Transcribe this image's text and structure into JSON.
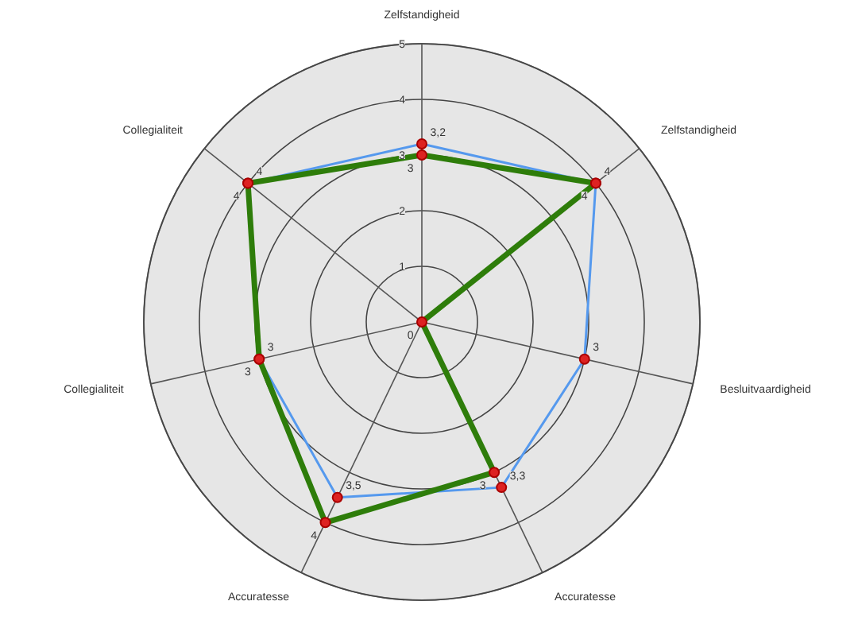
{
  "chart_data": {
    "type": "radar",
    "categories": [
      "Zelfstandigheid",
      "Zelfstandigheid",
      "Besluitvaardigheid",
      "Accuratesse",
      "Accuratesse",
      "Collegialiteit",
      "Collegialiteit"
    ],
    "series": [
      {
        "color": "#5599ee",
        "values": [
          3.2,
          4,
          3,
          3.3,
          3.5,
          3,
          4
        ],
        "value_labels": [
          "3,2",
          "4",
          "3",
          "3,3",
          "3,5",
          "3",
          "4"
        ]
      },
      {
        "color": "#2e7d0a",
        "values": [
          3,
          4,
          0,
          3,
          4,
          3,
          4
        ],
        "value_labels": [
          "3",
          "4",
          "0",
          "3",
          "4",
          "3",
          "4"
        ]
      }
    ],
    "ylim": [
      0,
      5
    ],
    "yticks": [
      1,
      2,
      3,
      4,
      5
    ],
    "grid": true,
    "marker": "circle"
  }
}
